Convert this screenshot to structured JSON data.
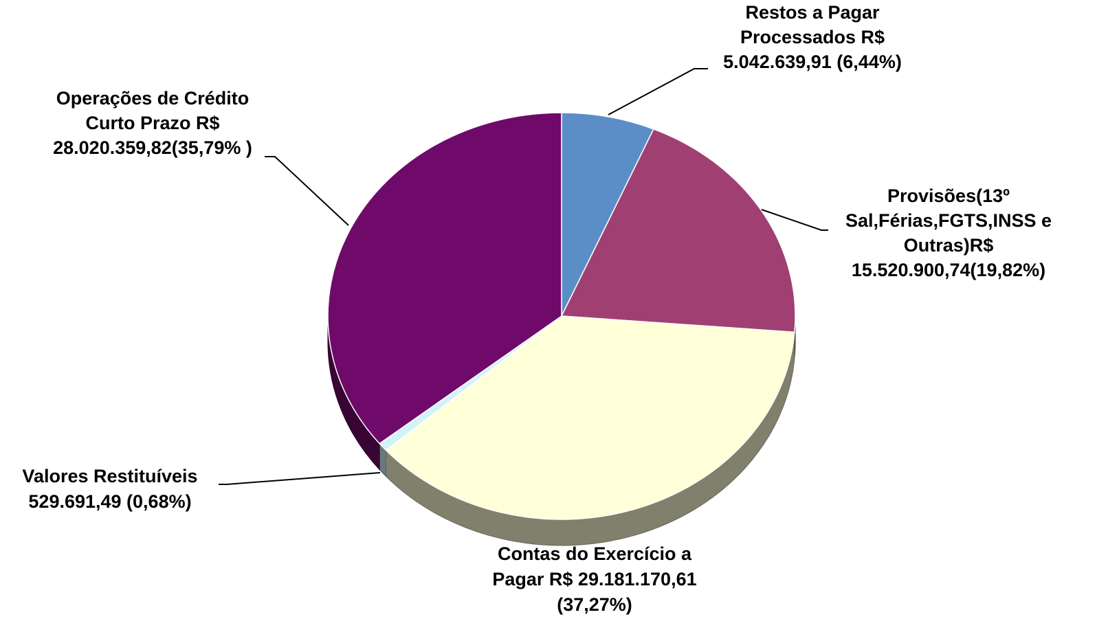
{
  "chart_data": {
    "type": "pie3d",
    "categories": [
      "Restos a Pagar Processados",
      "Provisões(13º Sal,Férias,FGTS,INSS e Outras)",
      "Contas do Exercício a Pagar",
      "Valores Restituíveis",
      "Operações de Crédito Curto Prazo"
    ],
    "values": [
      5042639.91,
      15520900.74,
      29181170.61,
      529691.49,
      28020359.82
    ],
    "value_labels": [
      [
        "Restos a Pagar",
        "Processados R$",
        "5.042.639,91 (6,44%)"
      ],
      [
        "Provisões(13º",
        "Sal,Férias,FGTS,INSS e",
        "Outras)R$",
        "15.520.900,74(19,82%)"
      ],
      [
        "Contas do Exercício a",
        "Pagar R$ 29.181.170,61",
        "(37,27%)"
      ],
      [
        "Valores Restituíveis",
        "529.691,49 (0,68%)"
      ],
      [
        "Operações de Crédito",
        "Curto Prazo R$",
        "28.020.359,82(35,79% )"
      ]
    ],
    "colors": [
      "#5b8ec7",
      "#a04072",
      "#ffffd8",
      "#d2f2fa",
      "#700a6a"
    ]
  }
}
